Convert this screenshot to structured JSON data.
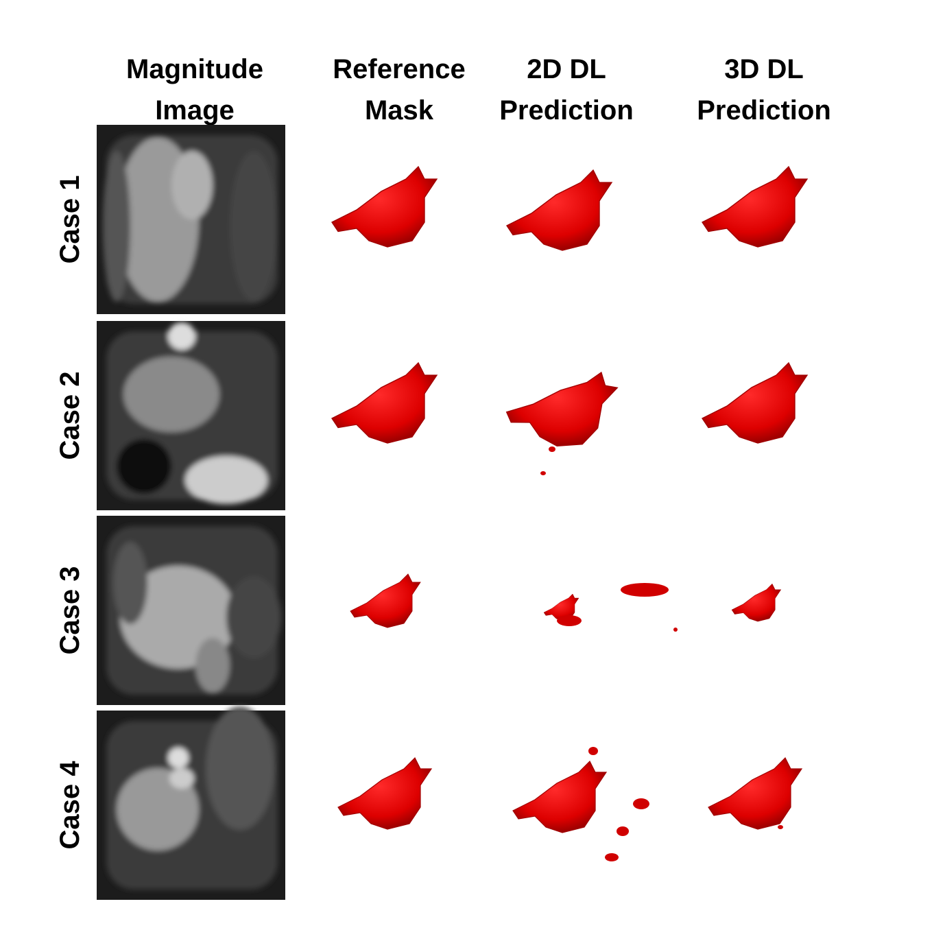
{
  "columns": [
    {
      "lines": [
        "Magnitude",
        "Image"
      ]
    },
    {
      "lines": [
        "Reference",
        "Mask"
      ]
    },
    {
      "lines": [
        "2D DL",
        "Prediction"
      ]
    },
    {
      "lines": [
        "3D DL",
        "Prediction"
      ]
    }
  ],
  "rows": [
    {
      "label": "Case 1"
    },
    {
      "label": "Case 2"
    },
    {
      "label": "Case 3"
    },
    {
      "label": "Case 4"
    }
  ]
}
